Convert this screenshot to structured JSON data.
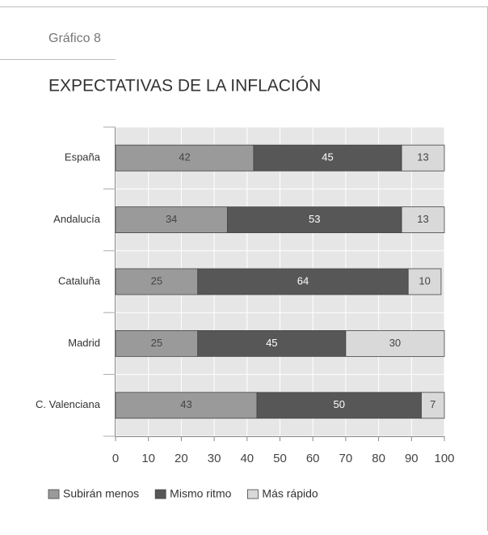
{
  "label": "Gráfico 8",
  "chart_data": {
    "type": "bar",
    "orientation": "horizontal",
    "stacked": true,
    "title": "EXPECTATIVAS DE LA INFLACIÓN",
    "categories": [
      "España",
      "Andalucía",
      "Cataluña",
      "Madrid",
      "C. Valenciana"
    ],
    "series": [
      {
        "name": "Subirán menos",
        "color": "#9a9a9a",
        "values": [
          42,
          34,
          25,
          25,
          43
        ]
      },
      {
        "name": "Mismo ritmo",
        "color": "#575757",
        "values": [
          45,
          53,
          64,
          45,
          50
        ]
      },
      {
        "name": "Más rápido",
        "color": "#d9d9d9",
        "values": [
          13,
          13,
          10,
          30,
          7
        ]
      }
    ],
    "xlim": [
      0,
      100
    ],
    "xticks": [
      0,
      10,
      20,
      30,
      40,
      50,
      60,
      70,
      80,
      90,
      100
    ],
    "grid": true,
    "legend": "bottom"
  }
}
